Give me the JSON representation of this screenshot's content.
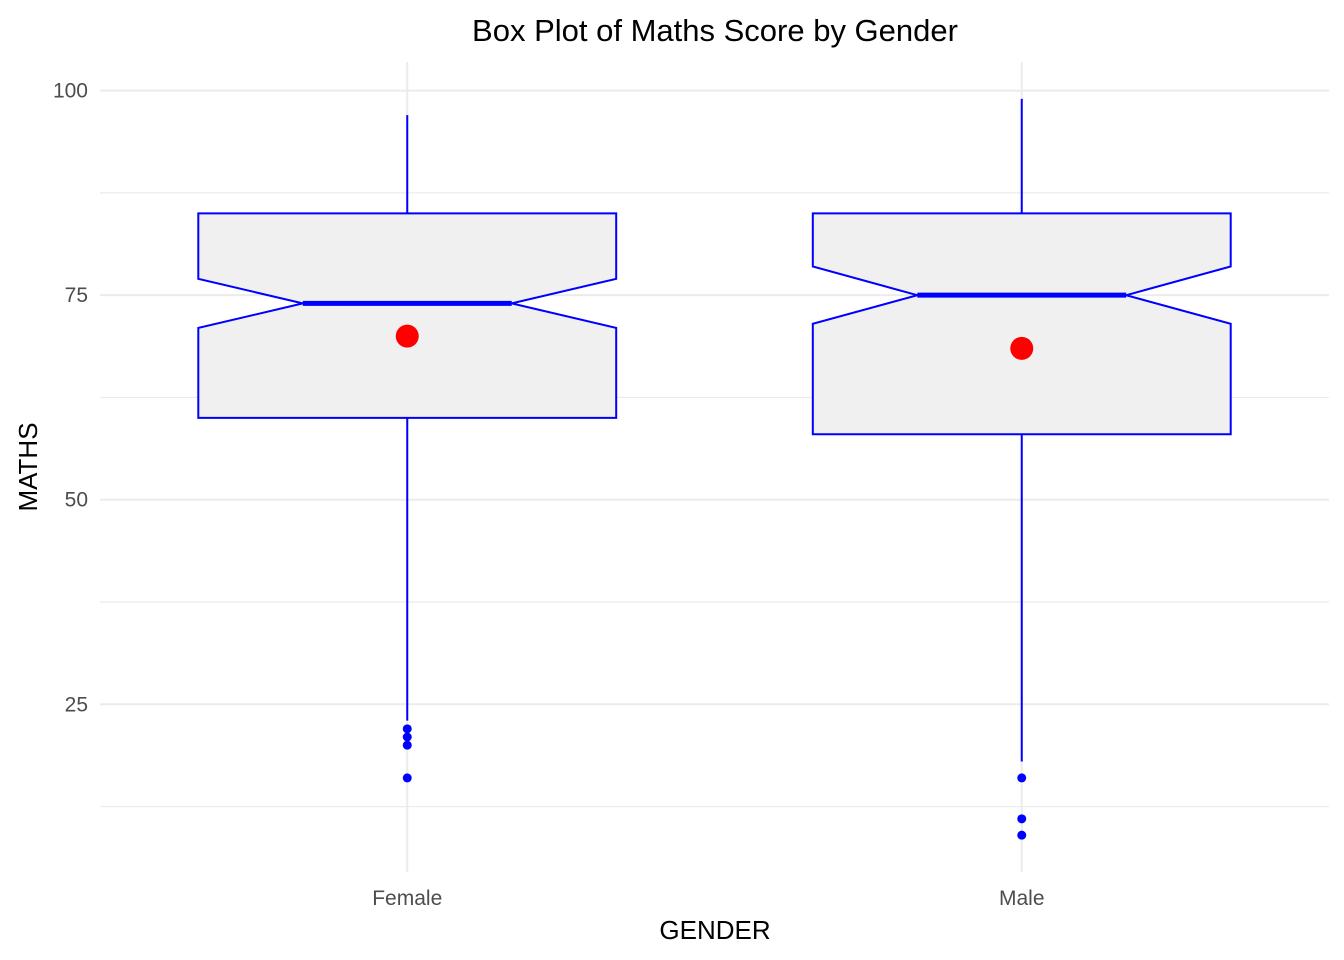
{
  "chart_data": {
    "type": "box",
    "title": "Box Plot of Maths Score by Gender",
    "xlabel": "GENDER",
    "ylabel": "MATHS",
    "categories": [
      "Female",
      "Male"
    ],
    "ylim": [
      4.5,
      103.5
    ],
    "yticks": [
      25,
      50,
      75,
      100
    ],
    "grid": true,
    "box_fill": "#f0f0f0",
    "box_color": "#0000ff",
    "mean_color": "#ff0000",
    "outlier_color": "#0000ff",
    "boxes": [
      {
        "name": "Female",
        "whisker_low": 23,
        "q1": 60,
        "median": 74,
        "q3": 85,
        "whisker_high": 97,
        "notch_low": 71,
        "notch_high": 77,
        "mean": 70,
        "outliers": [
          22,
          21,
          20,
          16
        ]
      },
      {
        "name": "Male",
        "whisker_low": 18,
        "q1": 58,
        "median": 75,
        "q3": 85,
        "whisker_high": 99,
        "notch_low": 71.5,
        "notch_high": 78.5,
        "mean": 68.5,
        "outliers": [
          16,
          11,
          9
        ]
      }
    ]
  }
}
